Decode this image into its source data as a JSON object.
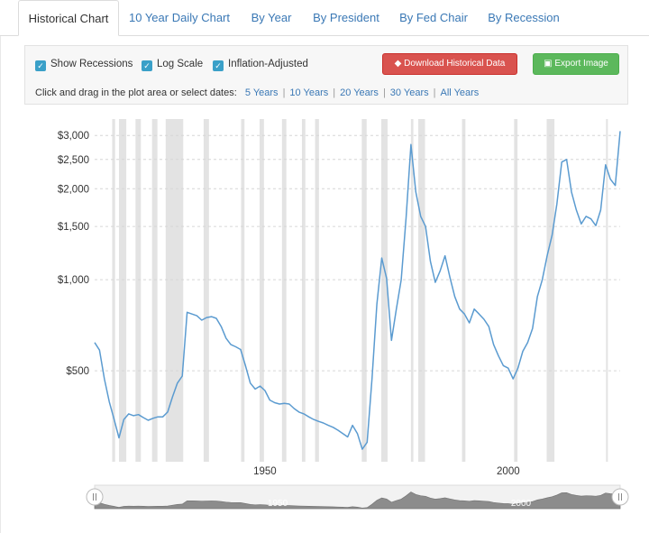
{
  "tabs": [
    {
      "label": "Historical Chart",
      "active": true
    },
    {
      "label": "10 Year Daily Chart"
    },
    {
      "label": "By Year"
    },
    {
      "label": "By President"
    },
    {
      "label": "By Fed Chair"
    },
    {
      "label": "By Recession"
    }
  ],
  "controls": {
    "show_recessions": "Show Recessions",
    "log_scale": "Log Scale",
    "inflation_adjusted": "Inflation-Adjusted",
    "download_label": "Download Historical Data",
    "export_label": "Export Image",
    "select_prompt": "Click and drag in the plot area or select dates:",
    "ranges": [
      "5 Years",
      "10 Years",
      "20 Years",
      "30 Years",
      "All Years"
    ]
  },
  "colors": {
    "line": "#5b9bd0",
    "recession": "#e3e3e3",
    "red_button": "#d9534f",
    "green_button": "#5cb85c"
  },
  "chart_data": {
    "type": "line",
    "title": "",
    "xlabel": "",
    "ylabel": "",
    "y_scale": "log",
    "xlim": [
      1915,
      2023
    ],
    "ylim": [
      250,
      3400
    ],
    "yticks": [
      500,
      1000,
      1500,
      2000,
      2500,
      3000
    ],
    "ytick_labels": [
      "$500",
      "$1,000",
      "$1,500",
      "$2,000",
      "$2,500",
      "$3,000"
    ],
    "xticks": [
      1950,
      2000
    ],
    "xtick_labels": [
      "1950",
      "2000"
    ],
    "grid": true,
    "recessions": [
      [
        1918.6,
        1919.2
      ],
      [
        1920.0,
        1921.5
      ],
      [
        1923.4,
        1924.5
      ],
      [
        1926.8,
        1927.9
      ],
      [
        1929.6,
        1933.2
      ],
      [
        1937.4,
        1938.5
      ],
      [
        1945.1,
        1945.8
      ],
      [
        1948.9,
        1949.8
      ],
      [
        1953.5,
        1954.4
      ],
      [
        1957.6,
        1958.3
      ],
      [
        1960.3,
        1961.1
      ],
      [
        1969.9,
        1970.9
      ],
      [
        1973.9,
        1975.2
      ],
      [
        1980.0,
        1980.5
      ],
      [
        1981.5,
        1982.9
      ],
      [
        1990.5,
        1991.2
      ],
      [
        2001.2,
        2001.9
      ],
      [
        2007.9,
        2009.5
      ],
      [
        2020.1,
        2020.4
      ]
    ],
    "series": [
      {
        "values": [
          [
            1915,
            620
          ],
          [
            1916,
            585
          ],
          [
            1917,
            470
          ],
          [
            1918,
            395
          ],
          [
            1919,
            345
          ],
          [
            1920,
            300
          ],
          [
            1921,
            345
          ],
          [
            1922,
            360
          ],
          [
            1923,
            355
          ],
          [
            1924,
            358
          ],
          [
            1925,
            350
          ],
          [
            1926,
            343
          ],
          [
            1927,
            348
          ],
          [
            1928,
            352
          ],
          [
            1929,
            352
          ],
          [
            1930,
            365
          ],
          [
            1931,
            410
          ],
          [
            1932,
            455
          ],
          [
            1933,
            480
          ],
          [
            1934,
            780
          ],
          [
            1935,
            770
          ],
          [
            1936,
            760
          ],
          [
            1937,
            735
          ],
          [
            1938,
            750
          ],
          [
            1939,
            755
          ],
          [
            1940,
            745
          ],
          [
            1941,
            700
          ],
          [
            1942,
            640
          ],
          [
            1943,
            610
          ],
          [
            1944,
            600
          ],
          [
            1945,
            588
          ],
          [
            1946,
            520
          ],
          [
            1947,
            455
          ],
          [
            1948,
            435
          ],
          [
            1949,
            445
          ],
          [
            1950,
            430
          ],
          [
            1951,
            400
          ],
          [
            1952,
            392
          ],
          [
            1953,
            388
          ],
          [
            1954,
            390
          ],
          [
            1955,
            388
          ],
          [
            1956,
            375
          ],
          [
            1957,
            365
          ],
          [
            1958,
            360
          ],
          [
            1959,
            352
          ],
          [
            1960,
            345
          ],
          [
            1961,
            340
          ],
          [
            1962,
            336
          ],
          [
            1963,
            330
          ],
          [
            1964,
            325
          ],
          [
            1965,
            318
          ],
          [
            1966,
            310
          ],
          [
            1967,
            302
          ],
          [
            1968,
            330
          ],
          [
            1969,
            310
          ],
          [
            1970,
            275
          ],
          [
            1971,
            290
          ],
          [
            1972,
            470
          ],
          [
            1973,
            830
          ],
          [
            1974,
            1180
          ],
          [
            1975,
            1010
          ],
          [
            1976,
            630
          ],
          [
            1977,
            800
          ],
          [
            1978,
            1000
          ],
          [
            1979,
            1600
          ],
          [
            1980,
            2800
          ],
          [
            1981,
            1950
          ],
          [
            1982,
            1620
          ],
          [
            1983,
            1500
          ],
          [
            1984,
            1150
          ],
          [
            1985,
            980
          ],
          [
            1986,
            1070
          ],
          [
            1987,
            1200
          ],
          [
            1988,
            1020
          ],
          [
            1989,
            880
          ],
          [
            1990,
            800
          ],
          [
            1991,
            770
          ],
          [
            1992,
            720
          ],
          [
            1993,
            800
          ],
          [
            1994,
            770
          ],
          [
            1995,
            740
          ],
          [
            1996,
            700
          ],
          [
            1997,
            610
          ],
          [
            1998,
            560
          ],
          [
            1999,
            520
          ],
          [
            2000,
            510
          ],
          [
            2001,
            470
          ],
          [
            2002,
            510
          ],
          [
            2003,
            580
          ],
          [
            2004,
            620
          ],
          [
            2005,
            690
          ],
          [
            2006,
            880
          ],
          [
            2007,
            1000
          ],
          [
            2008,
            1200
          ],
          [
            2009,
            1400
          ],
          [
            2010,
            1780
          ],
          [
            2011,
            2450
          ],
          [
            2012,
            2500
          ],
          [
            2013,
            1950
          ],
          [
            2014,
            1700
          ],
          [
            2015,
            1530
          ],
          [
            2016,
            1620
          ],
          [
            2017,
            1590
          ],
          [
            2018,
            1510
          ],
          [
            2019,
            1700
          ],
          [
            2020,
            2400
          ],
          [
            2021,
            2150
          ],
          [
            2022,
            2050
          ],
          [
            2023,
            3100
          ]
        ]
      }
    ]
  }
}
